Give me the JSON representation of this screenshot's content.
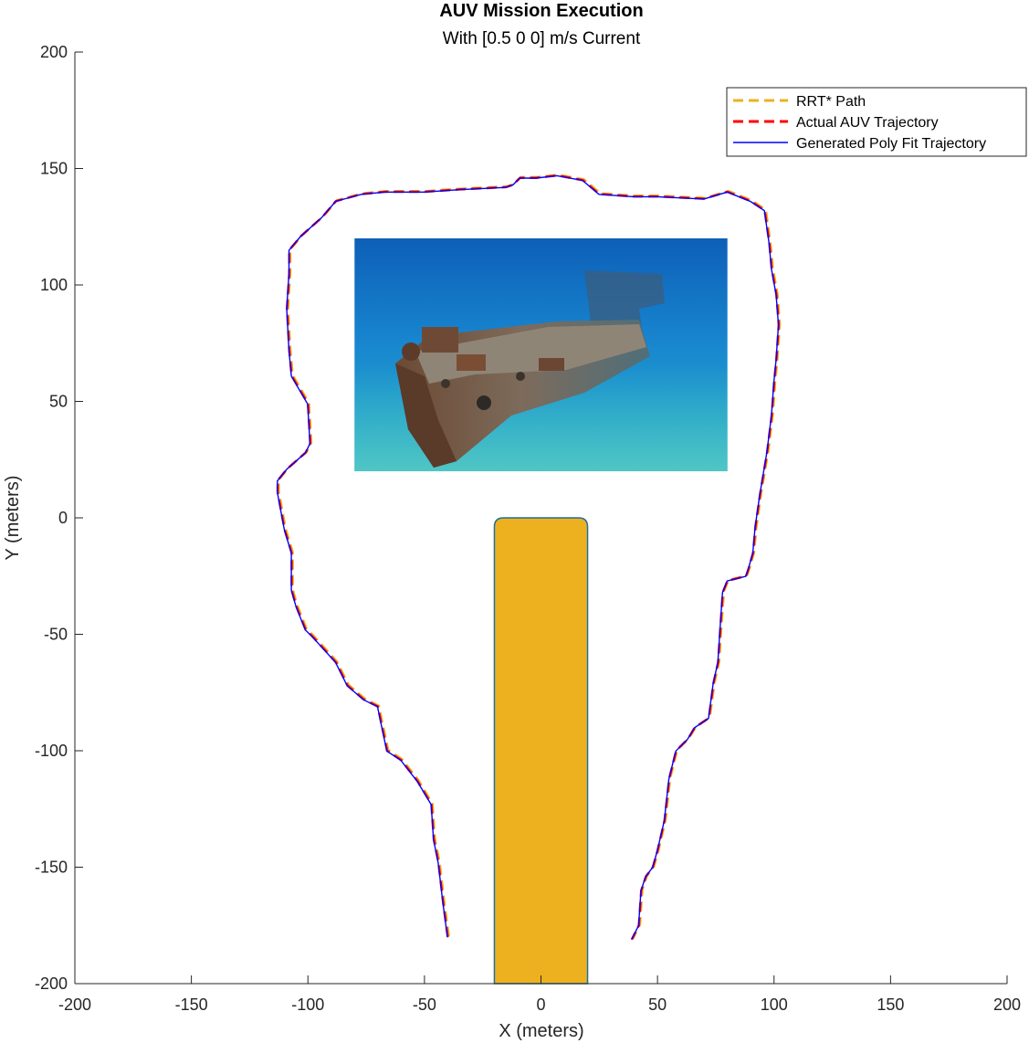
{
  "chart_data": {
    "type": "line",
    "title": "AUV Mission Execution",
    "subtitle": "With [0.5 0 0] m/s Current",
    "xlabel": "X (meters)",
    "ylabel": "Y (meters)",
    "xlim": [
      -200,
      200
    ],
    "ylim": [
      -200,
      200
    ],
    "xticks": [
      -200,
      -150,
      -100,
      -50,
      0,
      50,
      100,
      150,
      200
    ],
    "yticks": [
      -200,
      -150,
      -100,
      -50,
      0,
      50,
      100,
      150,
      200
    ],
    "grid": false,
    "legend_position": "top-right",
    "obstacle": {
      "x": [
        -20,
        20
      ],
      "y": [
        -200,
        0
      ],
      "color": "#EDB120"
    },
    "image_region": {
      "x": [
        -80,
        80
      ],
      "y": [
        20,
        120
      ]
    },
    "path_points": [
      [
        -40,
        -180
      ],
      [
        -42,
        -165
      ],
      [
        -44,
        -148
      ],
      [
        -46,
        -138
      ],
      [
        -47,
        -123
      ],
      [
        -53,
        -113
      ],
      [
        -60,
        -104
      ],
      [
        -66,
        -100
      ],
      [
        -69,
        -86
      ],
      [
        -70,
        -81
      ],
      [
        -76,
        -78
      ],
      [
        -83,
        -72
      ],
      [
        -88,
        -62
      ],
      [
        -98,
        -51
      ],
      [
        -101,
        -48
      ],
      [
        -105,
        -38
      ],
      [
        -107,
        -31
      ],
      [
        -107,
        -15
      ],
      [
        -110,
        -5
      ],
      [
        -113,
        11
      ],
      [
        -113,
        16
      ],
      [
        -109,
        21
      ],
      [
        -101,
        28
      ],
      [
        -99,
        32
      ],
      [
        -100,
        49
      ],
      [
        -107,
        61
      ],
      [
        -108,
        72
      ],
      [
        -109,
        90
      ],
      [
        -108,
        105
      ],
      [
        -108,
        115
      ],
      [
        -103,
        121
      ],
      [
        -94,
        129
      ],
      [
        -88,
        136
      ],
      [
        -77,
        139
      ],
      [
        -67,
        140
      ],
      [
        -50,
        140
      ],
      [
        -35,
        141
      ],
      [
        -15,
        142
      ],
      [
        -12,
        143
      ],
      [
        -9,
        146
      ],
      [
        -2,
        146
      ],
      [
        7,
        147
      ],
      [
        18,
        145
      ],
      [
        25,
        139
      ],
      [
        40,
        138
      ],
      [
        50,
        138
      ],
      [
        70,
        137
      ],
      [
        80,
        140
      ],
      [
        90,
        136
      ],
      [
        96,
        132
      ],
      [
        98,
        118
      ],
      [
        99,
        107
      ],
      [
        101,
        96
      ],
      [
        102,
        83
      ],
      [
        101,
        68
      ],
      [
        100,
        58
      ],
      [
        99,
        44
      ],
      [
        97,
        28
      ],
      [
        94,
        10
      ],
      [
        92,
        -4
      ],
      [
        91,
        -15
      ],
      [
        89,
        -22
      ],
      [
        88,
        -25
      ],
      [
        80,
        -27
      ],
      [
        78,
        -32
      ],
      [
        77,
        -47
      ],
      [
        76,
        -62
      ],
      [
        74,
        -71
      ],
      [
        72,
        -86
      ],
      [
        66,
        -90
      ],
      [
        63,
        -95
      ],
      [
        58,
        -100
      ],
      [
        55,
        -112
      ],
      [
        53,
        -130
      ],
      [
        50,
        -143
      ],
      [
        48,
        -150
      ],
      [
        45,
        -154
      ],
      [
        43,
        -160
      ],
      [
        42,
        -175
      ],
      [
        39,
        -181
      ]
    ],
    "series": [
      {
        "name": "RRT* Path",
        "color": "#EDB120",
        "style": "dashed"
      },
      {
        "name": "Actual AUV Trajectory",
        "color": "#FF0000",
        "style": "dashed"
      },
      {
        "name": "Generated Poly Fit Trajectory",
        "color": "#0000FF",
        "style": "solid"
      }
    ]
  }
}
